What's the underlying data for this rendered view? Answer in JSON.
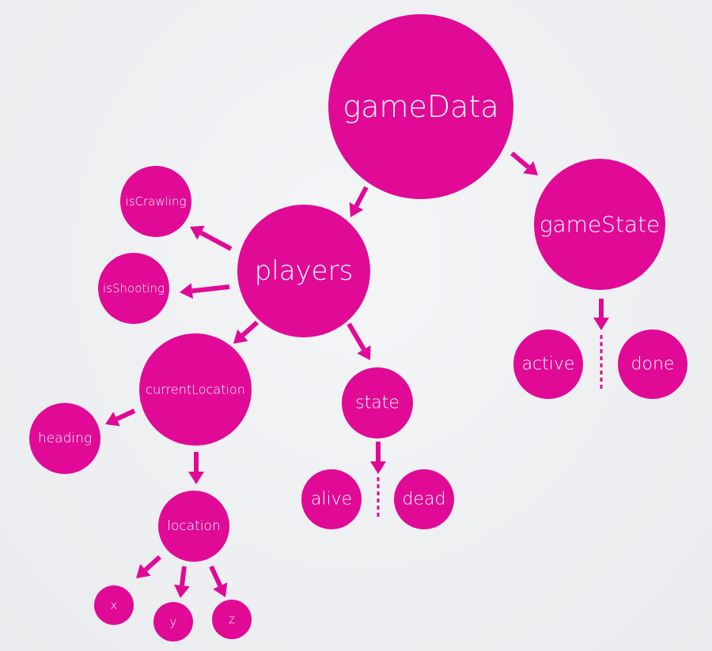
{
  "accent_color": "#e00a96",
  "nodes": {
    "gameData": "gameData",
    "gameState": "gameState",
    "players": "players",
    "isCrawling": "isCrawling",
    "isShooting": "isShooting",
    "currentLocation": "currentLocation",
    "heading": "heading",
    "state": "state",
    "alive": "alive",
    "dead": "dead",
    "location": "location",
    "x": "x",
    "y": "y",
    "z": "z",
    "active": "active",
    "done": "done"
  },
  "edges": [
    [
      "gameData",
      "players"
    ],
    [
      "gameData",
      "gameState"
    ],
    [
      "players",
      "isCrawling"
    ],
    [
      "players",
      "isShooting"
    ],
    [
      "players",
      "currentLocation"
    ],
    [
      "players",
      "state"
    ],
    [
      "currentLocation",
      "heading"
    ],
    [
      "currentLocation",
      "location"
    ],
    [
      "location",
      "x"
    ],
    [
      "location",
      "y"
    ],
    [
      "location",
      "z"
    ],
    [
      "state",
      "alive|dead"
    ],
    [
      "gameState",
      "active|done"
    ]
  ]
}
